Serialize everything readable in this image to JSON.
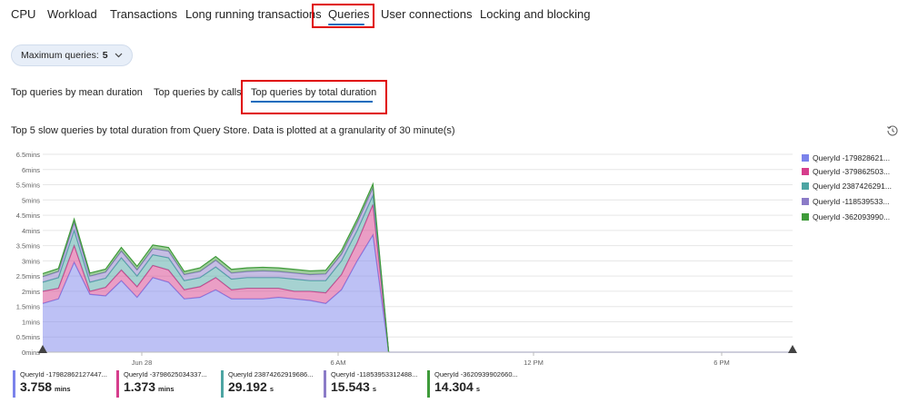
{
  "top_tabs": [
    "CPU",
    "Workload",
    "Transactions",
    "Long running transactions",
    "Queries",
    "User connections",
    "Locking and blocking"
  ],
  "max_queries": {
    "label": "Maximum queries:",
    "value": "5"
  },
  "sub_tabs": [
    "Top queries by mean duration",
    "Top queries by calls",
    "Top queries by total duration"
  ],
  "chart_title": "Top 5 slow queries by total duration from Query Store. Data is plotted at a granularity of 30 minute(s)",
  "chart_data": {
    "type": "area",
    "stacked": true,
    "y_ticks": [
      "0mins",
      "0.5mins",
      "1mins",
      "1.5mins",
      "2mins",
      "2.5mins",
      "3mins",
      "3.5mins",
      "4mins",
      "4.5mins",
      "5mins",
      "5.5mins",
      "6mins",
      "6.5mins"
    ],
    "ylim": [
      0,
      6.5
    ],
    "x_ticks": [
      "Jun 28",
      "6 AM",
      "12 PM",
      "6 PM"
    ],
    "grid": true,
    "legend": "right",
    "series": [
      {
        "name": "QueryId -179828621...",
        "color": "#7b83eb",
        "values": [
          1.6,
          1.75,
          2.95,
          1.9,
          1.85,
          2.35,
          1.8,
          2.45,
          2.3,
          1.75,
          1.8,
          2.05,
          1.75,
          1.75,
          1.75,
          1.8,
          1.75,
          1.7,
          1.6,
          2.05,
          3.0,
          3.85,
          0
        ]
      },
      {
        "name": "QueryId -379862503...",
        "color": "#d63d8c",
        "values": [
          0.4,
          0.35,
          0.55,
          0.1,
          0.28,
          0.35,
          0.35,
          0.4,
          0.4,
          0.3,
          0.35,
          0.4,
          0.3,
          0.35,
          0.35,
          0.3,
          0.25,
          0.3,
          0.35,
          0.5,
          0.6,
          1.0,
          0
        ]
      },
      {
        "name": "QueryId 2387426291...",
        "color": "#4da5a3",
        "values": [
          0.3,
          0.35,
          0.5,
          0.3,
          0.3,
          0.4,
          0.35,
          0.35,
          0.4,
          0.3,
          0.3,
          0.35,
          0.35,
          0.35,
          0.35,
          0.35,
          0.4,
          0.35,
          0.4,
          0.45,
          0.4,
          0.3,
          0
        ]
      },
      {
        "name": "QueryId -118539533...",
        "color": "#8b7bc7",
        "values": [
          0.18,
          0.2,
          0.25,
          0.2,
          0.2,
          0.22,
          0.2,
          0.2,
          0.22,
          0.2,
          0.2,
          0.22,
          0.2,
          0.2,
          0.22,
          0.2,
          0.2,
          0.2,
          0.22,
          0.22,
          0.25,
          0.25,
          0
        ]
      },
      {
        "name": "QueryId -362093990...",
        "color": "#3f9b3a",
        "values": [
          0.1,
          0.1,
          0.12,
          0.1,
          0.1,
          0.12,
          0.12,
          0.12,
          0.12,
          0.1,
          0.12,
          0.12,
          0.12,
          0.12,
          0.12,
          0.12,
          0.12,
          0.12,
          0.12,
          0.12,
          0.12,
          0.12,
          0
        ]
      }
    ]
  },
  "summary_cards": [
    {
      "label": "QueryId -17982862127447...",
      "value": "3.758",
      "unit": "mins",
      "color": "#7b83eb"
    },
    {
      "label": "QueryId -3798625034337...",
      "value": "1.373",
      "unit": "mins",
      "color": "#d63d8c"
    },
    {
      "label": "QueryId 23874262919686...",
      "value": "29.192",
      "unit": "s",
      "color": "#4da5a3"
    },
    {
      "label": "QueryId -11853953312488...",
      "value": "15.543",
      "unit": "s",
      "color": "#8b7bc7"
    },
    {
      "label": "QueryId -3620939902660...",
      "value": "14.304",
      "unit": "s",
      "color": "#3f9b3a"
    }
  ]
}
